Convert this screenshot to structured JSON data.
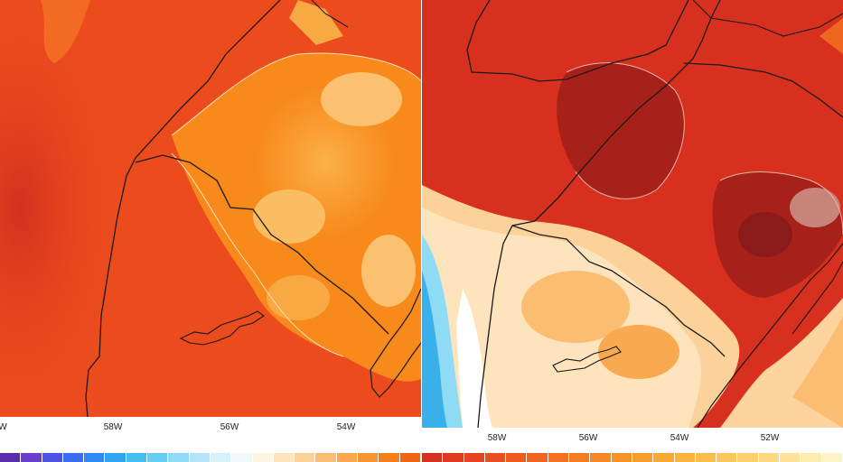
{
  "left_panel": {
    "x_ticks": [
      "W",
      "58W",
      "56W",
      "54W"
    ]
  },
  "right_panel": {
    "x_ticks": [
      "58W",
      "56W",
      "54W",
      "52W"
    ]
  },
  "colors": {
    "deep_red": "#8b1a1a",
    "red": "#d7301f",
    "orange_red": "#f2541d",
    "orange": "#f88a1c",
    "light_orange": "#fbb24a",
    "pale_orange": "#fdd49e",
    "cream": "#fff1d6",
    "white": "#ffffff",
    "light_blue": "#a6dcf5",
    "blue": "#3ab0ea",
    "border_line": "#1a1a1a"
  },
  "colorbar_left": [
    "#5a2ea6",
    "#6a3fd0",
    "#4a55e0",
    "#3a6ef0",
    "#2d8af5",
    "#2fa4f0",
    "#45bdf0",
    "#66cdf3",
    "#8fdaf5",
    "#b4e6f8",
    "#d6f1fa",
    "#f0f8fb",
    "#fff4e0",
    "#fde4bd",
    "#fcd19a",
    "#fbbd72",
    "#f9a94f",
    "#f7952f",
    "#f37f1d",
    "#ee6414"
  ],
  "colorbar_right": [
    "#d7301f",
    "#de3a1f",
    "#e44520",
    "#e95020",
    "#ed5b20",
    "#f06621",
    "#f27222",
    "#f47d23",
    "#f58824",
    "#f69326",
    "#f79e2a",
    "#f8a933",
    "#f9b33e",
    "#fabd4c",
    "#fbc75c",
    "#fcd06e",
    "#fdd982",
    "#fde297",
    "#feebae",
    "#fef3c7"
  ]
}
